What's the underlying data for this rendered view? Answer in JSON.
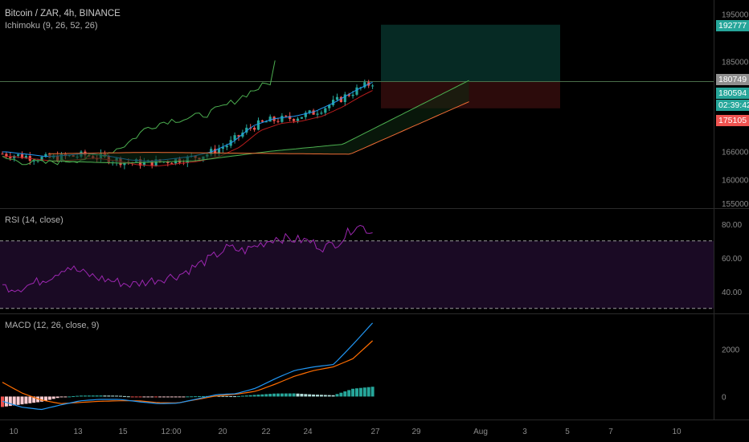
{
  "header": {
    "symbol_title": "Bitcoin / ZAR, 4h, BINANCE",
    "ichimoku_label": "Ichimoku (9, 26, 52, 26)",
    "rsi_label": "RSI (14, close)",
    "macd_label": "MACD (12, 26, close, 9)"
  },
  "price_axis": {
    "ticks": [
      {
        "label": "195000",
        "value": 195000
      },
      {
        "label": "185000",
        "value": 185000
      },
      {
        "label": "166000",
        "value": 166000
      },
      {
        "label": "160000",
        "value": 160000
      },
      {
        "label": "155000",
        "value": 155000
      }
    ]
  },
  "price_tags": {
    "target": {
      "label": "192777",
      "color": "#26a69a"
    },
    "last": {
      "label": "180749",
      "color": "#8f8f8f"
    },
    "current": {
      "label": "180594",
      "color": "#26a69a"
    },
    "countdown": {
      "label": "02:39:42",
      "color": "#26a69a"
    },
    "stop": {
      "label": "175105",
      "color": "#ef5350"
    }
  },
  "rsi_axis": {
    "ticks": [
      "80.00",
      "60.00",
      "40.00"
    ]
  },
  "macd_axis": {
    "ticks": [
      "2000",
      "0"
    ]
  },
  "time_axis": {
    "labels": [
      "10",
      "13",
      "15",
      "12:00",
      "20",
      "22",
      "24",
      "27",
      "29",
      "Aug",
      "3",
      "5",
      "7",
      "10"
    ]
  },
  "colors": {
    "background": "#000000",
    "bull": "#26a69a",
    "bear": "#ef5350",
    "tenkan": "#2196f3",
    "kijun": "#b71c1c",
    "span_a": "#4caf50",
    "span_b": "#ef6c35",
    "rsi_line": "#9c27b0",
    "rsi_band": "#1a0a24",
    "macd_line": "#2196f3",
    "signal_line": "#ff6d00",
    "target_zone": "#062a24",
    "stop_zone": "#2c0b0b"
  },
  "chart_data": [
    {
      "type": "line",
      "name": "price",
      "title": "Bitcoin / ZAR, 4h, BINANCE",
      "xlabel": "",
      "ylabel": "",
      "ylim": [
        154000,
        198000
      ],
      "x_ticks": [
        "10",
        "13",
        "15",
        "12:00",
        "20",
        "22",
        "24",
        "27"
      ],
      "y_ticks": [
        195000,
        185000,
        166000,
        160000,
        155000
      ],
      "approx_close": [
        165500,
        165000,
        164500,
        164800,
        165200,
        164600,
        163800,
        163500,
        164000,
        164500,
        165500,
        167500,
        171000,
        172500,
        173000,
        174000,
        176000,
        178500,
        180594
      ],
      "last_price": 180594,
      "position": {
        "entry": 180749,
        "target": 192777,
        "stop": 175105
      },
      "grid": false
    },
    {
      "type": "line",
      "name": "RSI",
      "title": "RSI (14, close)",
      "ylim": [
        28,
        88
      ],
      "levels": [
        70,
        30
      ],
      "values": [
        43,
        42,
        45,
        49,
        55,
        51,
        48,
        46,
        44,
        46,
        48,
        50,
        55,
        60,
        66,
        64,
        68,
        72,
        71,
        70,
        66,
        70,
        80,
        75
      ],
      "y_ticks": [
        80,
        60,
        40
      ],
      "grid": false
    },
    {
      "type": "line",
      "name": "MACD",
      "title": "MACD (12, 26, close, 9)",
      "ylim": [
        -900,
        3400
      ],
      "macd_values": [
        -200,
        -450,
        -550,
        -350,
        -180,
        -120,
        -120,
        -220,
        -300,
        -280,
        -100,
        80,
        120,
        350,
        750,
        1100,
        1250,
        1350,
        2200,
        3100
      ],
      "signal_values": [
        600,
        150,
        -150,
        -300,
        -250,
        -200,
        -180,
        -180,
        -260,
        -270,
        -120,
        30,
        100,
        220,
        520,
        860,
        1100,
        1250,
        1600,
        2350
      ],
      "y_ticks": [
        2000,
        0
      ],
      "grid": false
    }
  ]
}
